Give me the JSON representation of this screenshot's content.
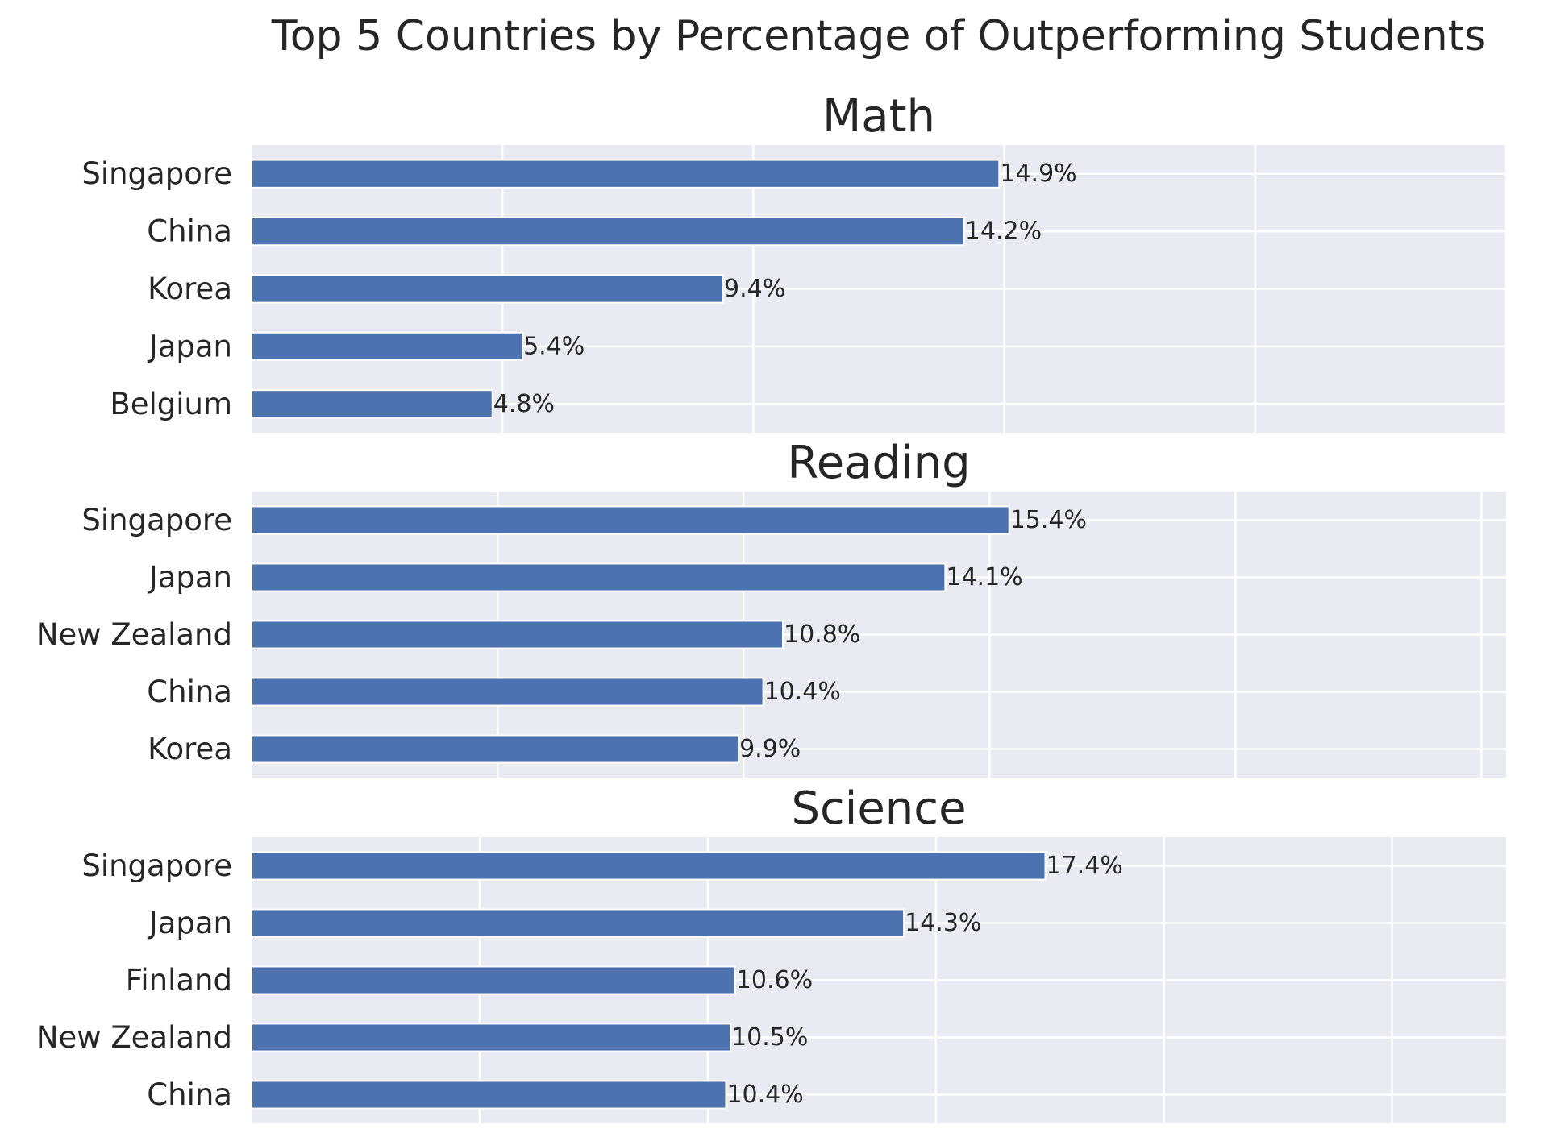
{
  "chart_data": {
    "type": "bar",
    "orientation": "horizontal",
    "title": "Top 5 Countries by Percentage of Outperforming Students",
    "grid": true,
    "colors": {
      "bar": "#4c72b0",
      "panel_background": "#eaeaf2",
      "grid": "#ffffff",
      "text": "#262626"
    },
    "panels": [
      {
        "title": "Math",
        "xlim": [
          0,
          25
        ],
        "xlabel": "",
        "ylabel": "",
        "categories": [
          "Singapore",
          "China",
          "Korea",
          "Japan",
          "Belgium"
        ],
        "values": [
          14.9,
          14.2,
          9.4,
          5.4,
          4.8
        ],
        "labels": [
          "14.9%",
          "14.2%",
          "9.4%",
          "5.4%",
          "4.8%"
        ]
      },
      {
        "title": "Reading",
        "xlim": [
          0,
          25.5
        ],
        "xlabel": "",
        "ylabel": "",
        "categories": [
          "Singapore",
          "Japan",
          "New Zealand",
          "China",
          "Korea"
        ],
        "values": [
          15.4,
          14.1,
          10.8,
          10.4,
          9.9
        ],
        "labels": [
          "15.4%",
          "14.1%",
          "10.8%",
          "10.4%",
          "9.9%"
        ]
      },
      {
        "title": "Science",
        "xlim": [
          0,
          27.5
        ],
        "xlabel": "",
        "ylabel": "",
        "categories": [
          "Singapore",
          "Japan",
          "Finland",
          "New Zealand",
          "China"
        ],
        "values": [
          17.4,
          14.3,
          10.6,
          10.5,
          10.4
        ],
        "labels": [
          "17.4%",
          "14.3%",
          "10.6%",
          "10.5%",
          "10.4%"
        ]
      }
    ]
  }
}
